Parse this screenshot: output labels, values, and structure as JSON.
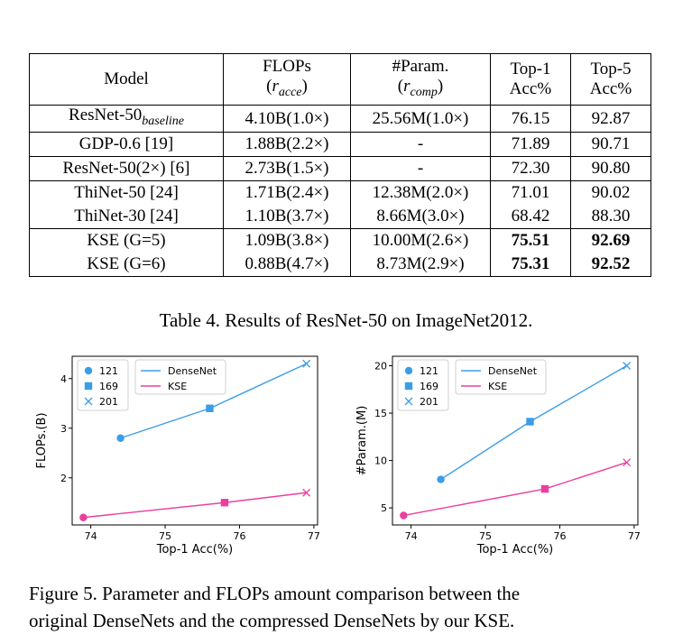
{
  "table": {
    "headers": {
      "model": "Model",
      "flops_line1": "FLOPs",
      "flops_line2_open": "(",
      "flops_line2_var": "r",
      "flops_line2_sub": "acce",
      "flops_line2_close": ")",
      "param_line1": "#Param.",
      "param_line2_open": "(",
      "param_line2_var": "r",
      "param_line2_sub": "comp",
      "param_line2_close": ")",
      "top1_line1": "Top-1",
      "top1_line2": "Acc%",
      "top5_line1": "Top-5",
      "top5_line2": "Acc%"
    },
    "rows": [
      {
        "model": "ResNet-50",
        "model_sub": "baseline",
        "flops": "4.10B(1.0×)",
        "params": "25.56M(1.0×)",
        "top1": "76.15",
        "top5": "92.87"
      },
      {
        "model": "GDP-0.6 [19]",
        "model_sub": "",
        "flops": "1.88B(2.2×)",
        "params": "-",
        "top1": "71.89",
        "top5": "90.71"
      },
      {
        "model": "ResNet-50(2×) [6]",
        "model_sub": "",
        "flops": "2.73B(1.5×)",
        "params": "-",
        "top1": "72.30",
        "top5": "90.80"
      },
      {
        "model": "ThiNet-50 [24]",
        "model_sub": "",
        "flops": "1.71B(2.4×)",
        "params": "12.38M(2.0×)",
        "top1": "71.01",
        "top5": "90.02"
      },
      {
        "model": "ThiNet-30 [24]",
        "model_sub": "",
        "flops": "1.10B(3.7×)",
        "params": "8.66M(3.0×)",
        "top1": "68.42",
        "top5": "88.30"
      },
      {
        "model": "KSE (G=5)",
        "model_sub": "",
        "flops": "1.09B(3.8×)",
        "params": "10.00M(2.6×)",
        "top1": "75.51",
        "top5": "92.69"
      },
      {
        "model": "KSE (G=6)",
        "model_sub": "",
        "flops": "0.88B(4.7×)",
        "params": "8.73M(2.9×)",
        "top1": "75.31",
        "top5": "92.52"
      }
    ],
    "caption": "Table 4. Results of ResNet-50 on ImageNet2012."
  },
  "figure_caption_line1": "Figure 5. Parameter and FLOPs amount comparison between the",
  "figure_caption_line2": "original DenseNets and the compressed DenseNets by our KSE.",
  "colors": {
    "densenet": "#3b9de8",
    "kse": "#ea3f9e"
  },
  "chart_data": [
    {
      "type": "line",
      "xlabel": "Top-1 Acc(%)",
      "ylabel": "FLOPs.(B)",
      "xlim": [
        73.75,
        77.05
      ],
      "ylim": [
        1.05,
        4.45
      ],
      "xticks": [
        74,
        75,
        76,
        77
      ],
      "yticks": [
        2,
        3,
        4
      ],
      "legend_markers": [
        "121",
        "169",
        "201"
      ],
      "series": [
        {
          "name": "DenseNet",
          "x": [
            74.4,
            75.6,
            76.9
          ],
          "y": [
            2.8,
            3.4,
            4.3
          ],
          "markers": [
            "circle",
            "square",
            "x"
          ]
        },
        {
          "name": "KSE",
          "x": [
            73.9,
            75.8,
            76.9
          ],
          "y": [
            1.2,
            1.5,
            1.7
          ],
          "markers": [
            "circle",
            "square",
            "x"
          ]
        }
      ]
    },
    {
      "type": "line",
      "xlabel": "Top-1 Acc(%)",
      "ylabel": "#Param.(M)",
      "xlim": [
        73.75,
        77.05
      ],
      "ylim": [
        3.2,
        21.0
      ],
      "xticks": [
        74,
        75,
        76,
        77
      ],
      "yticks": [
        5,
        10,
        15,
        20
      ],
      "legend_markers": [
        "121",
        "169",
        "201"
      ],
      "series": [
        {
          "name": "DenseNet",
          "x": [
            74.4,
            75.6,
            76.9
          ],
          "y": [
            8.0,
            14.1,
            20.0
          ],
          "markers": [
            "circle",
            "square",
            "x"
          ]
        },
        {
          "name": "KSE",
          "x": [
            73.9,
            75.8,
            76.9
          ],
          "y": [
            4.2,
            7.0,
            9.8
          ],
          "markers": [
            "circle",
            "square",
            "x"
          ]
        }
      ]
    }
  ]
}
